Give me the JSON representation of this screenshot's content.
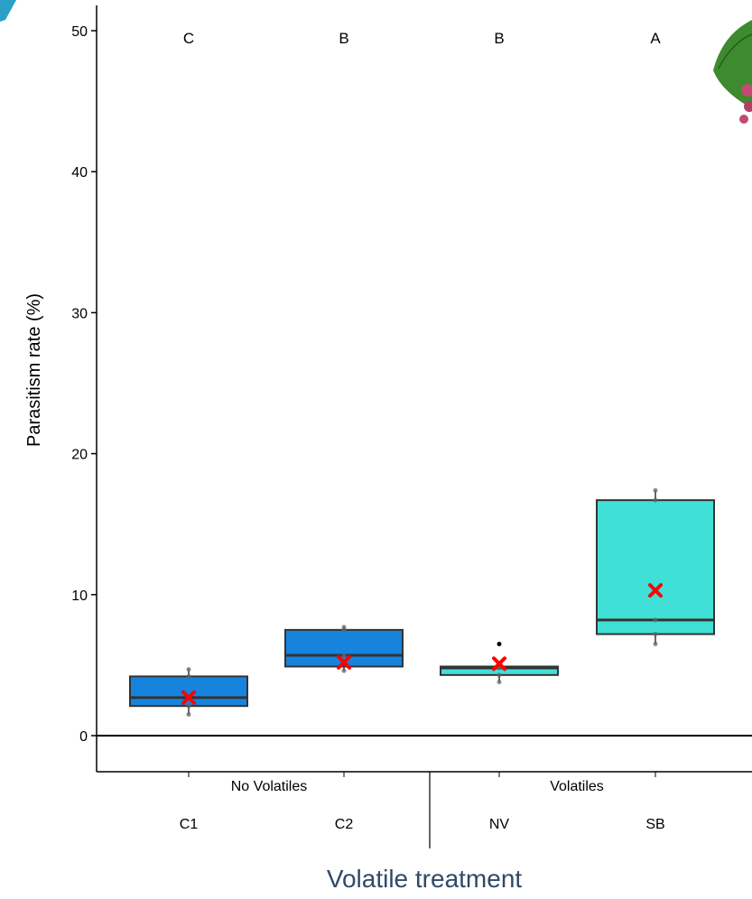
{
  "chart_data": {
    "type": "box",
    "xlabel": "Volatile treatment",
    "ylabel": "Parasitism rate (%)",
    "ylim": [
      -2.5,
      51.5
    ],
    "yticks": [
      0,
      10,
      20,
      30,
      40,
      50
    ],
    "groups": [
      {
        "label": "No Volatiles",
        "categories": [
          "C1",
          "C2"
        ]
      },
      {
        "label": "Volatiles",
        "categories": [
          "NV",
          "SB"
        ]
      }
    ],
    "boxes": [
      {
        "category": "C1",
        "group": "No Volatiles",
        "q1": 2.1,
        "median": 2.7,
        "q3": 4.2,
        "whisker_low": 1.5,
        "whisker_high": 4.7,
        "mean": 2.7,
        "letter": "C",
        "fill": "#1684dd",
        "points": [
          1.5,
          2.1,
          2.7,
          4.2,
          4.7
        ]
      },
      {
        "category": "C2",
        "group": "No Volatiles",
        "q1": 4.9,
        "median": 5.7,
        "q3": 7.5,
        "whisker_low": 4.6,
        "whisker_high": 7.7,
        "mean": 5.2,
        "letter": "B",
        "fill": "#1684dd",
        "points": [
          4.6,
          5.7,
          7.5,
          7.7
        ]
      },
      {
        "category": "NV",
        "group": "Volatiles",
        "q1": 4.3,
        "median": 4.8,
        "q3": 4.9,
        "whisker_low": 3.8,
        "whisker_high": 4.9,
        "mean": 5.1,
        "letter": "B",
        "fill": "#40e0d6",
        "points": [
          3.8,
          4.3,
          4.8,
          4.9
        ],
        "outliers": [
          6.5
        ]
      },
      {
        "category": "SB",
        "group": "Volatiles",
        "q1": 7.2,
        "median": 8.2,
        "q3": 16.7,
        "whisker_low": 6.5,
        "whisker_high": 17.4,
        "mean": 10.3,
        "letter": "A",
        "fill": "#40e0d6",
        "points": [
          6.5,
          7.2,
          8.2,
          16.7,
          17.4
        ]
      }
    ],
    "mean_marker_color": "#ff0000",
    "grid": false,
    "legend": "none"
  }
}
